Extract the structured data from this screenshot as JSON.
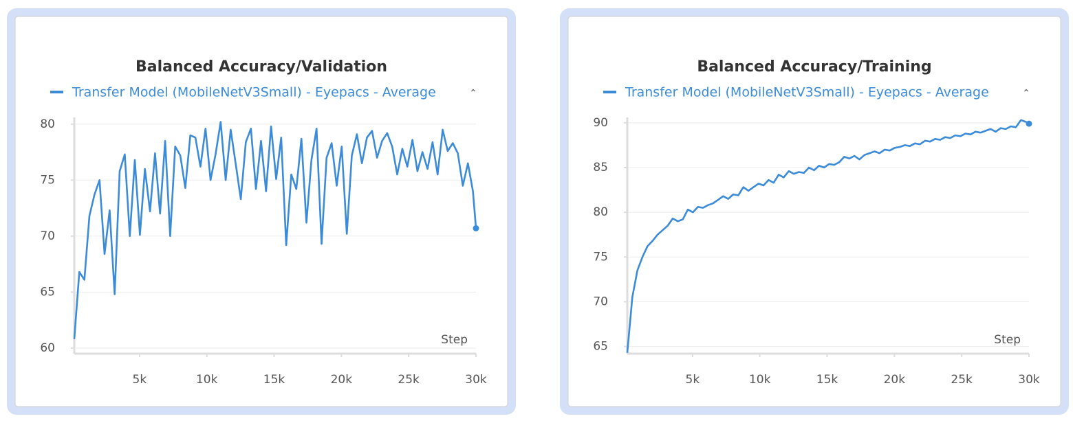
{
  "chart_data": [
    {
      "type": "line",
      "title": "Balanced Accuracy/Validation",
      "xlabel": "Step",
      "x": [
        150,
        525,
        900,
        1275,
        1650,
        2025,
        2400,
        2775,
        3150,
        3525,
        3900,
        4275,
        4650,
        5025,
        5400,
        5775,
        6150,
        6525,
        6900,
        7275,
        7650,
        8025,
        8400,
        8775,
        9150,
        9525,
        9900,
        10275,
        10650,
        11025,
        11400,
        11775,
        12150,
        12525,
        12900,
        13275,
        13650,
        14025,
        14400,
        14775,
        15150,
        15525,
        15900,
        16275,
        16650,
        17025,
        17400,
        17775,
        18150,
        18525,
        18900,
        19275,
        19650,
        20025,
        20400,
        20775,
        21150,
        21525,
        21900,
        22275,
        22650,
        23025,
        23400,
        23775,
        24150,
        24525,
        24900,
        25275,
        25650,
        26025,
        26400,
        26775,
        27150,
        27525,
        27900,
        28275,
        28650,
        29025,
        29400,
        29775,
        30000
      ],
      "series": [
        {
          "name": "Transfer Model (MobileNetV3Small) - Eyepacs - Average",
          "color": "#3b8bd9",
          "values": [
            60.8,
            66.8,
            66.1,
            71.8,
            73.7,
            75.0,
            68.4,
            72.3,
            64.8,
            75.8,
            77.3,
            70.0,
            76.8,
            70.1,
            76.0,
            72.2,
            77.4,
            72.0,
            78.5,
            70.0,
            78.0,
            77.2,
            74.3,
            79.0,
            78.8,
            76.2,
            79.6,
            75.0,
            77.3,
            80.2,
            75.0,
            79.5,
            76.4,
            73.3,
            78.4,
            79.6,
            74.2,
            78.5,
            74.0,
            79.8,
            75.1,
            78.8,
            69.2,
            75.5,
            74.2,
            78.7,
            71.2,
            76.8,
            79.6,
            69.3,
            77.0,
            78.3,
            74.5,
            78.0,
            70.2,
            77.2,
            79.1,
            76.5,
            78.8,
            79.4,
            77.0,
            78.5,
            79.2,
            78.0,
            75.5,
            77.8,
            76.2,
            78.6,
            75.8,
            77.5,
            76.0,
            78.4,
            75.5,
            79.5,
            77.6,
            78.3,
            77.4,
            74.5,
            76.5,
            74.0,
            70.7
          ]
        }
      ],
      "xlim": [
        150,
        30000
      ],
      "xticks": [
        {
          "value": 5000,
          "label": "5k"
        },
        {
          "value": 10000,
          "label": "10k"
        },
        {
          "value": 15000,
          "label": "15k"
        },
        {
          "value": 20000,
          "label": "20k"
        },
        {
          "value": 25000,
          "label": "25k"
        },
        {
          "value": 30000,
          "label": "30k"
        }
      ],
      "ylim": [
        59.5,
        80.6
      ],
      "yticks": [
        60,
        65,
        70,
        75,
        80
      ],
      "grid": true
    },
    {
      "type": "line",
      "title": "Balanced Accuracy/Training",
      "xlabel": "Step",
      "x": [
        150,
        525,
        900,
        1275,
        1650,
        2025,
        2400,
        2775,
        3150,
        3525,
        3900,
        4275,
        4650,
        5025,
        5400,
        5775,
        6150,
        6525,
        6900,
        7275,
        7650,
        8025,
        8400,
        8775,
        9150,
        9525,
        9900,
        10275,
        10650,
        11025,
        11400,
        11775,
        12150,
        12525,
        12900,
        13275,
        13650,
        14025,
        14400,
        14775,
        15150,
        15525,
        15900,
        16275,
        16650,
        17025,
        17400,
        17775,
        18150,
        18525,
        18900,
        19275,
        19650,
        20025,
        20400,
        20775,
        21150,
        21525,
        21900,
        22275,
        22650,
        23025,
        23400,
        23775,
        24150,
        24525,
        24900,
        25275,
        25650,
        26025,
        26400,
        26775,
        27150,
        27525,
        27900,
        28275,
        28650,
        29025,
        29400,
        29775,
        30000
      ],
      "series": [
        {
          "name": "Transfer Model (MobileNetV3Small) - Eyepacs - Average",
          "color": "#3b8bd9",
          "values": [
            64.3,
            70.5,
            73.5,
            75,
            76.2,
            76.8,
            77.5,
            78,
            78.5,
            79.3,
            79.0,
            79.2,
            80.3,
            80.0,
            80.6,
            80.5,
            80.8,
            81.0,
            81.4,
            81.8,
            81.5,
            82.0,
            81.9,
            82.8,
            82.4,
            82.8,
            83.2,
            83.0,
            83.6,
            83.3,
            84.2,
            83.9,
            84.6,
            84.3,
            84.5,
            84.4,
            85.0,
            84.7,
            85.2,
            85.0,
            85.4,
            85.3,
            85.6,
            86.2,
            86.0,
            86.3,
            85.9,
            86.4,
            86.6,
            86.8,
            86.6,
            87.0,
            86.9,
            87.2,
            87.3,
            87.5,
            87.4,
            87.7,
            87.6,
            88.0,
            87.9,
            88.2,
            88.1,
            88.4,
            88.3,
            88.6,
            88.5,
            88.8,
            88.7,
            89.0,
            88.9,
            89.1,
            89.3,
            89.0,
            89.4,
            89.3,
            89.6,
            89.5,
            90.3,
            90.1,
            89.9
          ]
        }
      ],
      "xlim": [
        150,
        30000
      ],
      "xticks": [
        {
          "value": 5000,
          "label": "5k"
        },
        {
          "value": 10000,
          "label": "10k"
        },
        {
          "value": 15000,
          "label": "15k"
        },
        {
          "value": 20000,
          "label": "20k"
        },
        {
          "value": 25000,
          "label": "25k"
        },
        {
          "value": 30000,
          "label": "30k"
        }
      ],
      "ylim": [
        64.2,
        90.6
      ],
      "yticks": [
        65,
        70,
        75,
        80,
        85,
        90
      ],
      "grid": true
    }
  ]
}
